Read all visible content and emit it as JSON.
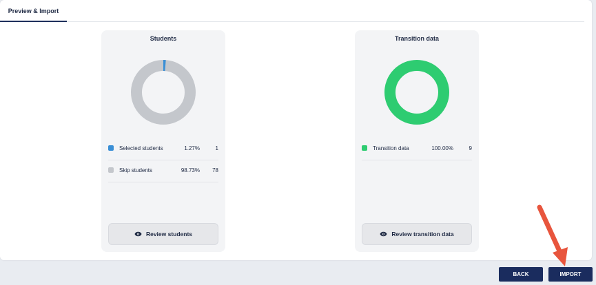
{
  "tabs": [
    {
      "label": "Preview & Import"
    }
  ],
  "cards": {
    "students": {
      "title": "Students",
      "legend": [
        {
          "label": "Selected students",
          "percent": "1.27%",
          "count": "1",
          "color": "#3a8fd6"
        },
        {
          "label": "Skip students",
          "percent": "98.73%",
          "count": "78",
          "color": "#c4c7cc"
        }
      ],
      "review_label": "Review students"
    },
    "transition": {
      "title": "Transition data",
      "legend": [
        {
          "label": "Transition data",
          "percent": "100.00%",
          "count": "9",
          "color": "#2ecc71"
        }
      ],
      "review_label": "Review transition data"
    }
  },
  "footer": {
    "back_label": "BACK",
    "import_label": "IMPORT"
  },
  "colors": {
    "primary": "#1a2c5e",
    "arrow": "#e8553d"
  }
}
